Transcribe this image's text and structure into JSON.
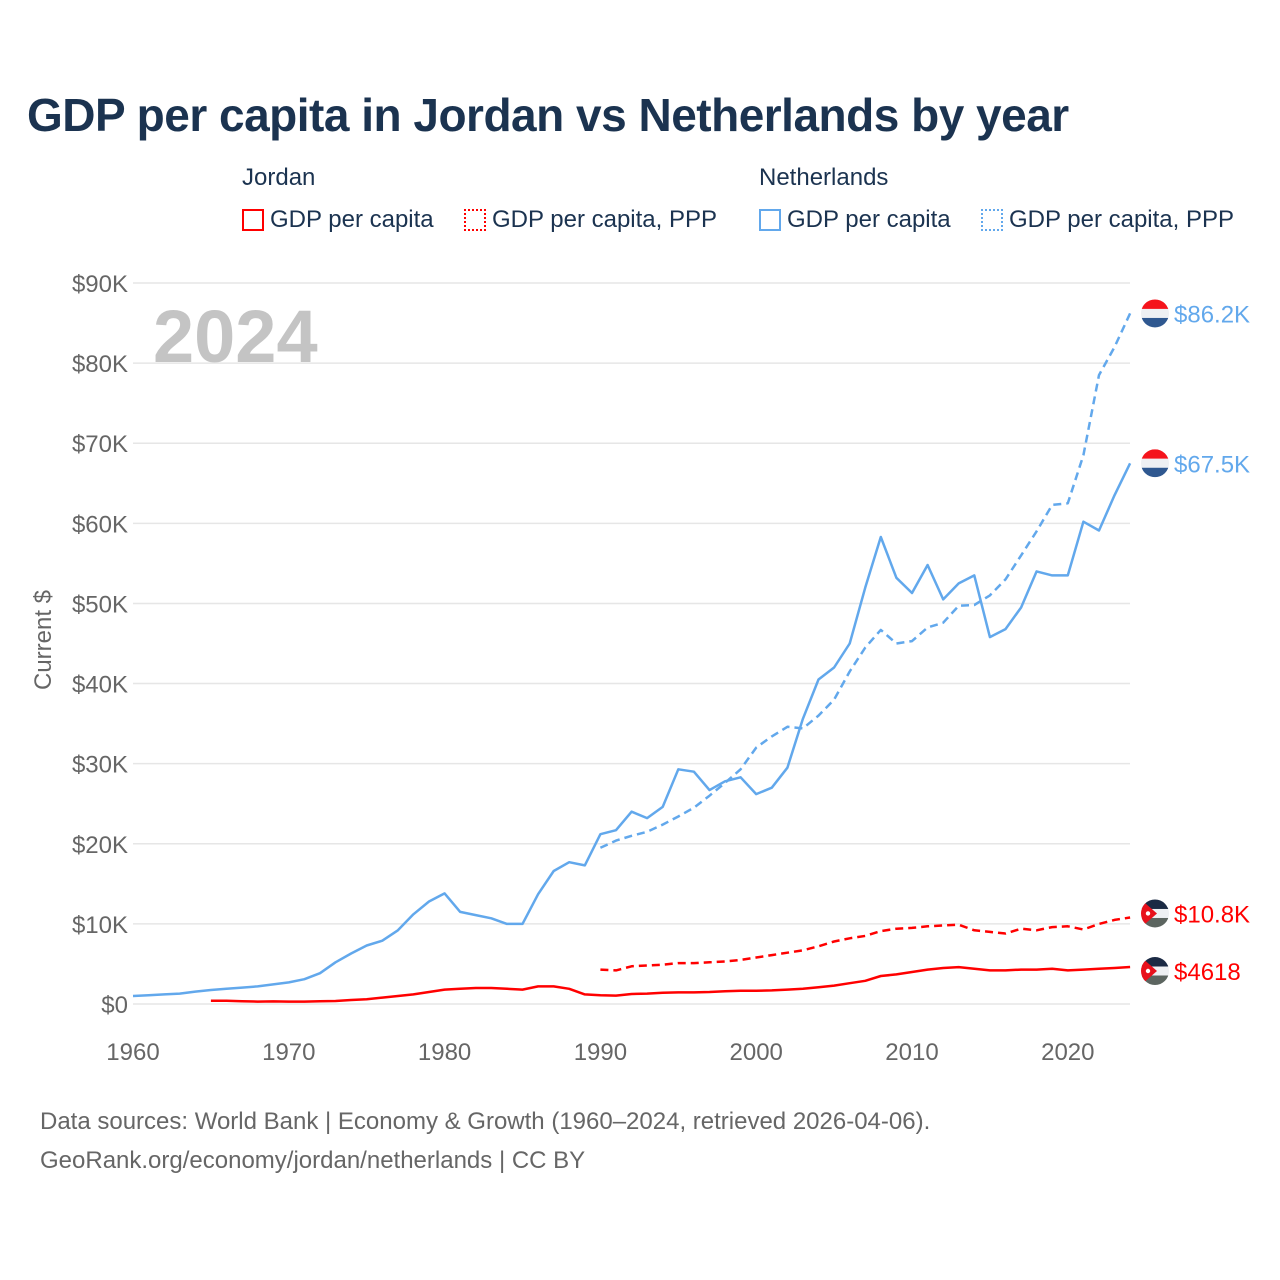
{
  "title": "GDP per capita in Jordan vs Netherlands by year",
  "legend": {
    "groups": [
      {
        "name": "Jordan",
        "items": [
          "GDP per capita",
          "GDP per capita, PPP"
        ],
        "color": "#ff0000"
      },
      {
        "name": "Netherlands",
        "items": [
          "GDP per capita",
          "GDP per capita, PPP"
        ],
        "color": "#62a8ec"
      }
    ]
  },
  "year_label": "2024",
  "source_line1": "Data sources: World Bank | Economy & Growth (1960–2024, retrieved 2026-04-06).",
  "source_line2": "GeoRank.org/economy/jordan/netherlands | CC BY",
  "chart_data": {
    "type": "line",
    "title": "GDP per capita in Jordan vs Netherlands by year",
    "xlabel": "",
    "ylabel": "Current $",
    "xlim": [
      1960,
      2024
    ],
    "ylim": [
      0,
      90000
    ],
    "x_ticks": [
      1960,
      1970,
      1980,
      1990,
      2000,
      2010,
      2020
    ],
    "x_tick_labels": [
      "1960",
      "1970",
      "1980",
      "1990",
      "2000",
      "2010",
      "2020"
    ],
    "y_ticks": [
      0,
      10000,
      20000,
      30000,
      40000,
      50000,
      60000,
      70000,
      80000,
      90000
    ],
    "y_tick_labels": [
      "$0",
      "$10K",
      "$20K",
      "$30K",
      "$40K",
      "$50K",
      "$60K",
      "$70K",
      "$80K",
      "$90K"
    ],
    "grid": true,
    "legend_position": "top",
    "series": [
      {
        "name": "Netherlands GDP per capita",
        "color": "#62a8ec",
        "dash": false,
        "start": 1960,
        "end_label": "$67.5K",
        "flag": "netherlands",
        "values_k": [
          1.0,
          1.1,
          1.2,
          1.3,
          1.55,
          1.75,
          1.9,
          2.05,
          2.2,
          2.45,
          2.7,
          3.1,
          3.85,
          5.2,
          6.3,
          7.3,
          7.9,
          9.2,
          11.2,
          12.8,
          13.8,
          11.5,
          11.1,
          10.7,
          10.0,
          10.0,
          13.7,
          16.6,
          17.7,
          17.3,
          21.2,
          21.7,
          24.0,
          23.2,
          24.6,
          29.3,
          29.0,
          26.7,
          27.8,
          28.3,
          26.2,
          27.0,
          29.5,
          35.6,
          40.5,
          42.0,
          45.0,
          52.0,
          58.3,
          53.2,
          51.3,
          54.8,
          50.5,
          52.5,
          53.5,
          45.8,
          46.8,
          49.5,
          54.0,
          53.5,
          53.5,
          60.2,
          59.1,
          63.5,
          67.5
        ]
      },
      {
        "name": "Netherlands GDP per capita, PPP",
        "color": "#62a8ec",
        "dash": true,
        "start": 1990,
        "end_label": "$86.2K",
        "flag": "netherlands",
        "values_k": [
          19.5,
          20.4,
          21.0,
          21.5,
          22.4,
          23.4,
          24.5,
          26.0,
          27.6,
          29.3,
          32.0,
          33.4,
          34.6,
          34.4,
          36.0,
          38.0,
          41.5,
          44.5,
          46.7,
          45.0,
          45.3,
          47.0,
          47.6,
          49.7,
          49.8,
          51.0,
          53.0,
          56.0,
          59.0,
          62.3,
          62.5,
          68.5,
          78.5,
          82.0,
          86.2
        ]
      },
      {
        "name": "Jordan GDP per capita",
        "color": "#ff0000",
        "dash": false,
        "start": 1965,
        "end_label": "$4618",
        "flag": "jordan",
        "values_k": [
          0.4,
          0.4,
          0.35,
          0.3,
          0.32,
          0.3,
          0.3,
          0.35,
          0.38,
          0.5,
          0.6,
          0.8,
          1.0,
          1.2,
          1.5,
          1.8,
          1.9,
          2.0,
          2.0,
          1.9,
          1.8,
          2.2,
          2.2,
          1.9,
          1.2,
          1.1,
          1.05,
          1.25,
          1.3,
          1.4,
          1.45,
          1.45,
          1.5,
          1.6,
          1.65,
          1.65,
          1.7,
          1.8,
          1.9,
          2.1,
          2.3,
          2.6,
          2.9,
          3.5,
          3.7,
          4.0,
          4.3,
          4.5,
          4.6,
          4.4,
          4.2,
          4.2,
          4.3,
          4.3,
          4.4,
          4.2,
          4.3,
          4.4,
          4.5,
          4.618
        ]
      },
      {
        "name": "Jordan GDP per capita, PPP",
        "color": "#ff0000",
        "dash": true,
        "start": 1990,
        "end_label": "$10.8K",
        "flag": "jordan",
        "values_k": [
          4.3,
          4.2,
          4.7,
          4.8,
          4.9,
          5.1,
          5.1,
          5.2,
          5.3,
          5.5,
          5.8,
          6.1,
          6.4,
          6.7,
          7.2,
          7.8,
          8.2,
          8.5,
          9.1,
          9.4,
          9.5,
          9.7,
          9.8,
          9.9,
          9.2,
          9.0,
          8.8,
          9.4,
          9.2,
          9.6,
          9.7,
          9.3,
          10.0,
          10.5,
          10.8
        ]
      }
    ]
  }
}
